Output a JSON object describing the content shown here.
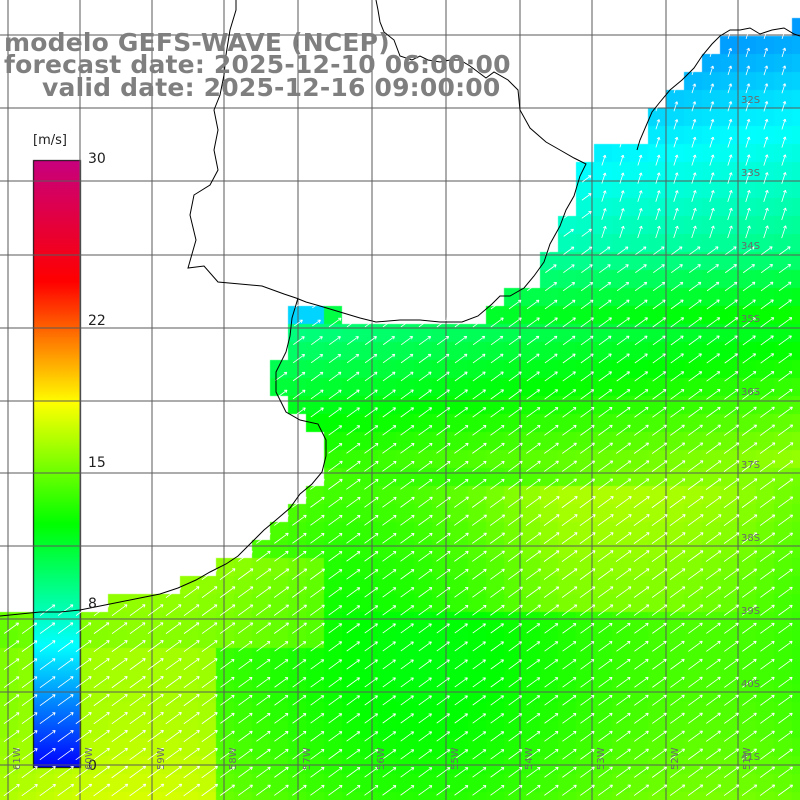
{
  "title": {
    "line1": "modelo GEFS-WAVE (NCEP)",
    "line2": "forecast date: 2025-12-10 06:00:00",
    "line3": "valid date: 2025-12-16 09:00:00"
  },
  "colorbar": {
    "unit": "[m/s]",
    "min": 0,
    "max": 30,
    "tick_labels": [
      "30",
      "22",
      "15",
      "8",
      "0"
    ],
    "tick_values": [
      30,
      22,
      15,
      8,
      0
    ],
    "colors": [
      "#0000ff",
      "#00ffff",
      "#00ff00",
      "#ffff00",
      "#ff0000",
      "#c8007f"
    ]
  },
  "map": {
    "lat_labels": [
      "32S",
      "33S",
      "34S",
      "35S",
      "36S",
      "37S",
      "38S",
      "39S",
      "40S",
      "41S"
    ],
    "lon_labels": [
      "61W",
      "60W",
      "59W",
      "58W",
      "57W",
      "56W",
      "55W",
      "54W",
      "53W",
      "52W",
      "51W"
    ],
    "field": "wind speed with direction arrows",
    "land_color": "#ffffff",
    "coast_color": "#000000"
  }
}
